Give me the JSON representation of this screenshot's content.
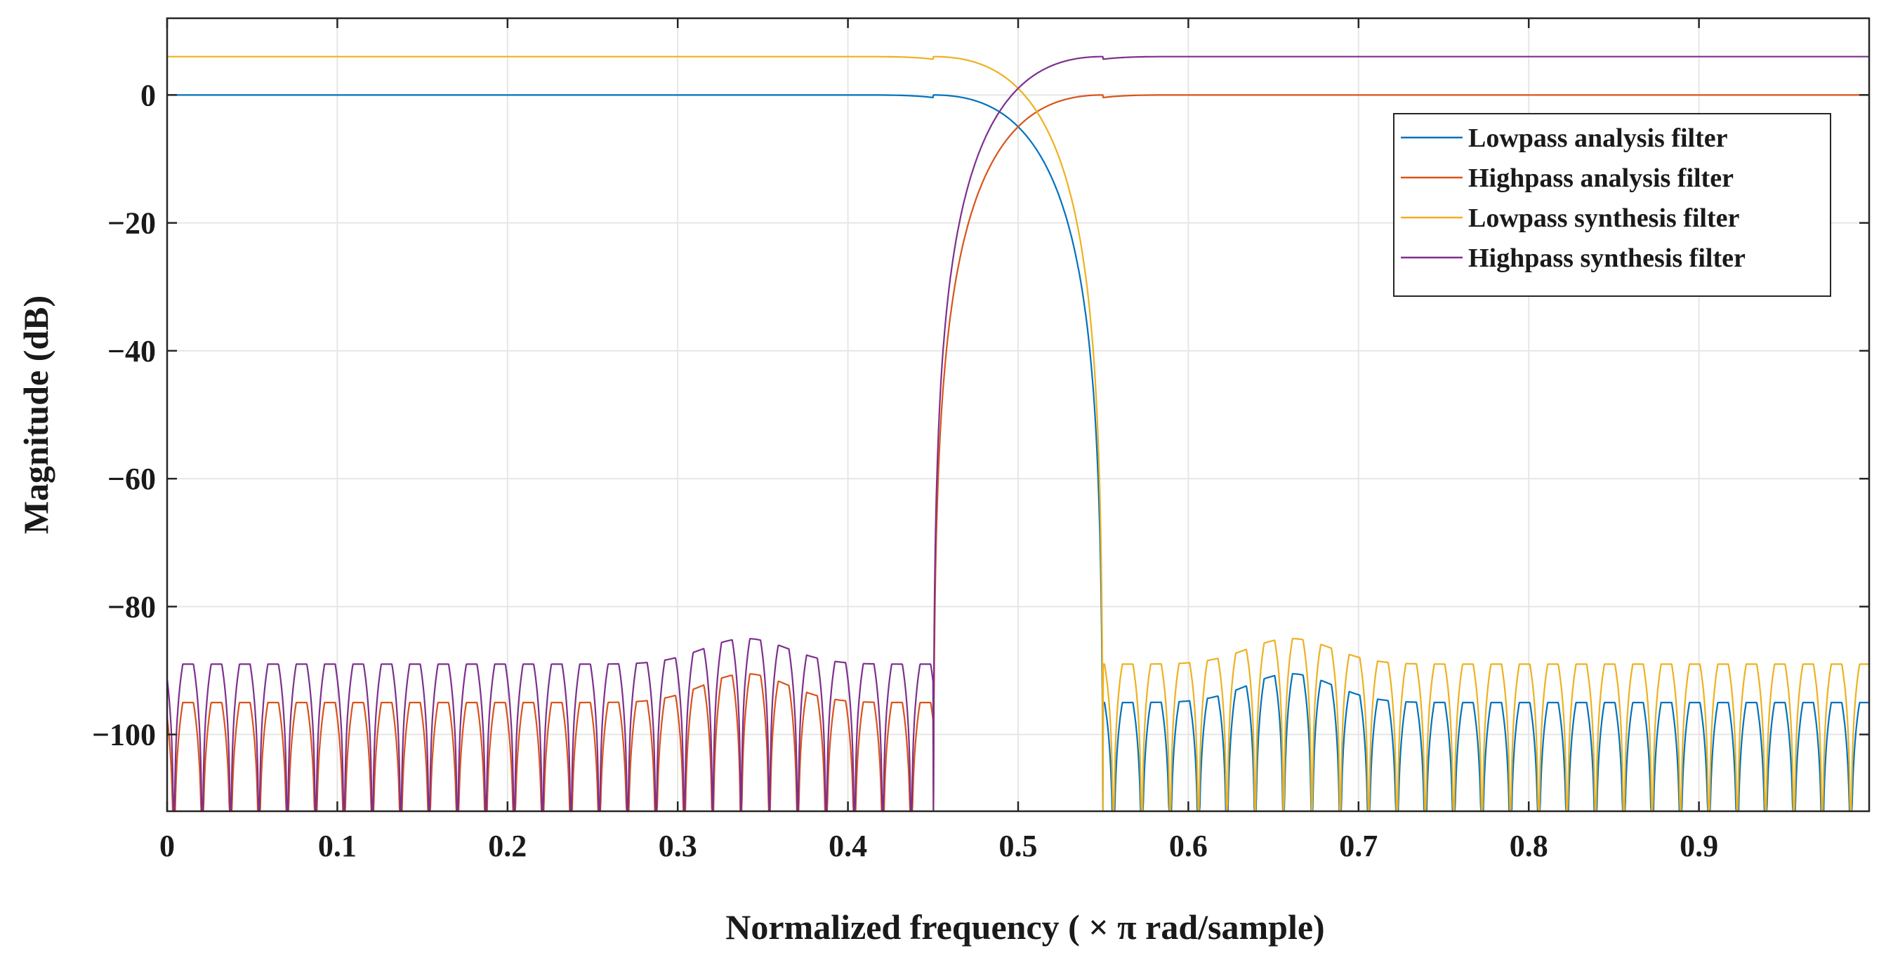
{
  "chart_data": {
    "type": "line",
    "title": "",
    "xlabel": "Normalized frequency ( × π rad/sample)",
    "ylabel": "Magnitude (dB)",
    "xlim": [
      0,
      1
    ],
    "ylim": [
      -112,
      12
    ],
    "xticks": [
      0,
      0.1,
      0.2,
      0.3,
      0.4,
      0.5,
      0.6,
      0.7,
      0.8,
      0.9
    ],
    "xtick_labels": [
      "0",
      "0.1",
      "0.2",
      "0.3",
      "0.4",
      "0.5",
      "0.6",
      "0.7",
      "0.8",
      "0.9"
    ],
    "yticks": [
      0,
      -20,
      -40,
      -60,
      -80,
      -100
    ],
    "ytick_labels": [
      "0",
      "−20",
      "−40",
      "−60",
      "−80",
      "−100"
    ],
    "grid": true,
    "legend_position": "top-right",
    "series": [
      {
        "name": "Lowpass analysis filter",
        "color": "#0072bd",
        "passband_level_db": 0,
        "transition_band": [
          0.45,
          0.55
        ],
        "stopband_range": [
          0.55,
          1.0
        ],
        "stopband_ripple_peaks_db": [
          -95,
          -90.5
        ]
      },
      {
        "name": "Highpass analysis filter",
        "color": "#d95319",
        "passband_level_db": 0,
        "transition_band": [
          0.45,
          0.55
        ],
        "stopband_range": [
          0.0,
          0.45
        ],
        "stopband_ripple_peaks_db": [
          -95,
          -90.5
        ]
      },
      {
        "name": "Lowpass synthesis filter",
        "color": "#edb120",
        "passband_level_db": 6,
        "transition_band": [
          0.45,
          0.55
        ],
        "stopband_range": [
          0.55,
          1.0
        ],
        "stopband_ripple_peaks_db": [
          -89,
          -85
        ]
      },
      {
        "name": "Highpass synthesis filter",
        "color": "#7e2f8e",
        "passband_level_db": 6,
        "transition_band": [
          0.45,
          0.55
        ],
        "stopband_range": [
          0.0,
          0.45
        ],
        "stopband_ripple_peaks_db": [
          -89,
          -85
        ]
      }
    ]
  }
}
